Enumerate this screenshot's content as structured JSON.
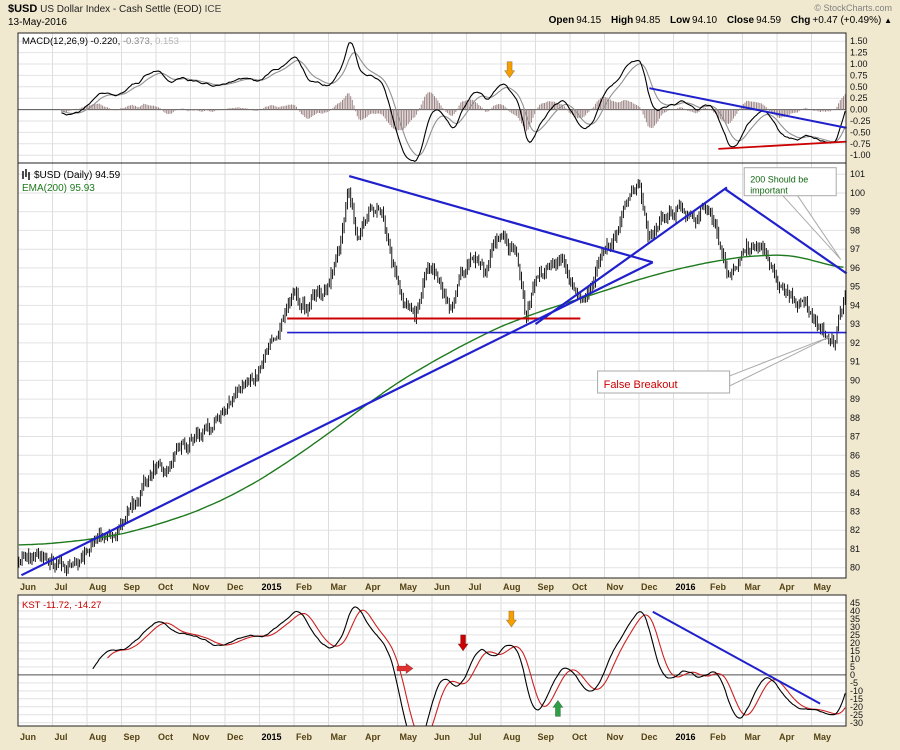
{
  "header": {
    "symbol": "$USD",
    "description": "US Dollar Index - Cash Settle (EOD)",
    "exchange": "ICE",
    "date": "13-May-2016",
    "copyright": "© StockCharts.com",
    "quote": {
      "open_label": "Open",
      "open": "94.15",
      "high_label": "High",
      "high": "94.85",
      "low_label": "Low",
      "low": "94.10",
      "close_label": "Close",
      "close": "94.59",
      "chg_label": "Chg",
      "chg": "+0.47 (+0.49%)",
      "arrow": "▲"
    }
  },
  "colors": {
    "background": "#f0e9d0",
    "panel_bg": "#ffffff",
    "grid": "#dddddd",
    "trendline_blue": "#2020cc",
    "support_red": "#cc0000",
    "ema_green": "#1e7a1e",
    "bars_black": "#000000",
    "macd_signal_gray": "#909090",
    "histogram": "#9d8585",
    "kst_signal_red": "#cc2222",
    "month_label": "#554314",
    "year_label": "#000000"
  },
  "chart_data": {
    "type": "line",
    "title": "$USD US Dollar Index - Cash Settle (EOD) ICE",
    "timeframe": "Daily",
    "months": [
      "Jun",
      "Jul",
      "Aug",
      "Sep",
      "Oct",
      "Nov",
      "Dec",
      "2015",
      "Feb",
      "Mar",
      "Apr",
      "May",
      "Jun",
      "Jul",
      "Aug",
      "Sep",
      "Oct",
      "Nov",
      "Dec",
      "2016",
      "Feb",
      "Mar",
      "Apr",
      "May"
    ],
    "days_per_month": 21,
    "panels": {
      "macd": {
        "label": "MACD(12,26,9)",
        "values": [
          "-0.220",
          "-0.373",
          "0.153"
        ],
        "params": {
          "fast": 12,
          "slow": 26,
          "signal": 9
        },
        "ylim": [
          -1.17,
          1.68
        ],
        "tick_format": "2dp",
        "yticks": [
          1.5,
          1.25,
          1.0,
          0.75,
          0.5,
          0.25,
          0.0,
          -0.25,
          -0.5,
          -0.75,
          -1.0
        ],
        "trendline": {
          "from": [
            18.3,
            0.47
          ],
          "to": [
            24.02,
            -0.4
          ],
          "color": "#2020cc"
        },
        "support_line": {
          "from": [
            20.3,
            -0.86
          ],
          "to": [
            24.02,
            -0.7
          ],
          "color": "#cc0000"
        },
        "arrows": [
          {
            "t": 14.25,
            "v": 0.7,
            "dir": "down",
            "color": "#f59f00"
          }
        ]
      },
      "price": {
        "label": "$USD (Daily)",
        "close": "94.59",
        "ema_label": "EMA(200)",
        "ema_value": "95.93",
        "ylim": [
          79.45,
          101.6
        ],
        "tick_format": "int",
        "yticks": [
          101,
          100,
          99,
          98,
          97,
          96,
          95,
          94,
          93,
          92,
          91,
          90,
          89,
          88,
          87,
          86,
          85,
          84,
          83,
          82,
          81,
          80
        ],
        "close_anchors": [
          [
            0,
            80.4
          ],
          [
            0.6,
            80.7
          ],
          [
            1.2,
            80.1
          ],
          [
            1.7,
            80.3
          ],
          [
            2.1,
            81.2
          ],
          [
            2.6,
            81.7
          ],
          [
            3,
            82.2
          ],
          [
            3.5,
            83.8
          ],
          [
            3.9,
            85.6
          ],
          [
            4.2,
            85.1
          ],
          [
            4.6,
            86.3
          ],
          [
            5,
            86.9
          ],
          [
            5.5,
            87.6
          ],
          [
            6,
            88.6
          ],
          [
            6.5,
            89.7
          ],
          [
            6.9,
            90.2
          ],
          [
            7.3,
            91.9
          ],
          [
            7.7,
            93.6
          ],
          [
            8,
            94.8
          ],
          [
            8.3,
            93.9
          ],
          [
            8.7,
            94.5
          ],
          [
            9,
            95.2
          ],
          [
            9.3,
            97.3
          ],
          [
            9.55,
            100.2
          ],
          [
            9.8,
            97.6
          ],
          [
            10.1,
            99.0
          ],
          [
            10.45,
            99.4
          ],
          [
            10.8,
            96.5
          ],
          [
            11.1,
            94.4
          ],
          [
            11.5,
            93.4
          ],
          [
            11.85,
            96.2
          ],
          [
            12.2,
            95.1
          ],
          [
            12.5,
            93.7
          ],
          [
            12.8,
            95.6
          ],
          [
            13.15,
            96.4
          ],
          [
            13.5,
            95.8
          ],
          [
            13.8,
            97.3
          ],
          [
            14.1,
            97.6
          ],
          [
            14.45,
            96.3
          ],
          [
            14.7,
            93.2
          ],
          [
            15,
            95.5
          ],
          [
            15.4,
            95.9
          ],
          [
            15.75,
            96.3
          ],
          [
            16.05,
            95.2
          ],
          [
            16.3,
            94.1
          ],
          [
            16.6,
            95.0
          ],
          [
            16.9,
            96.9
          ],
          [
            17.3,
            97.8
          ],
          [
            17.6,
            99.5
          ],
          [
            18,
            100.2
          ],
          [
            18.25,
            97.8
          ],
          [
            18.6,
            98.6
          ],
          [
            18.95,
            99.0
          ],
          [
            19.3,
            99.2
          ],
          [
            19.6,
            98.6
          ],
          [
            19.9,
            99.4
          ],
          [
            20.2,
            98.2
          ],
          [
            20.55,
            95.4
          ],
          [
            20.8,
            95.9
          ],
          [
            21.1,
            96.9
          ],
          [
            21.45,
            97.4
          ],
          [
            21.8,
            95.9
          ],
          [
            22.1,
            94.8
          ],
          [
            22.5,
            94.5
          ],
          [
            22.8,
            93.9
          ],
          [
            23.1,
            93.2
          ],
          [
            23.4,
            92.5
          ],
          [
            23.65,
            91.95
          ],
          [
            23.85,
            93.8
          ],
          [
            24,
            94.59
          ]
        ],
        "ema_anchors": [
          [
            0,
            81.2
          ],
          [
            1,
            81.3
          ],
          [
            2,
            81.5
          ],
          [
            3,
            81.8
          ],
          [
            4,
            82.3
          ],
          [
            5,
            82.9
          ],
          [
            6,
            83.7
          ],
          [
            7,
            84.7
          ],
          [
            8,
            85.9
          ],
          [
            9,
            87.2
          ],
          [
            10,
            88.6
          ],
          [
            11,
            89.9
          ],
          [
            12,
            91.0
          ],
          [
            13,
            92.0
          ],
          [
            14,
            92.9
          ],
          [
            15,
            93.6
          ],
          [
            16,
            94.2
          ],
          [
            17,
            94.8
          ],
          [
            18,
            95.4
          ],
          [
            19,
            95.9
          ],
          [
            20,
            96.3
          ],
          [
            21,
            96.6
          ],
          [
            22,
            96.7
          ],
          [
            22.6,
            96.6
          ],
          [
            23.2,
            96.3
          ],
          [
            24,
            95.93
          ]
        ],
        "trendlines": [
          {
            "from": [
              0.1,
              79.6
            ],
            "to": [
              18.4,
              96.3
            ],
            "color": "#2020cc"
          },
          {
            "from": [
              9.6,
              100.9
            ],
            "to": [
              18.4,
              96.3
            ],
            "color": "#2020cc"
          },
          {
            "from": [
              15.0,
              93.0
            ],
            "to": [
              20.55,
              100.3
            ],
            "color": "#2020cc"
          },
          {
            "from": [
              20.5,
              100.2
            ],
            "to": [
              24.02,
              95.7
            ],
            "color": "#2020cc"
          }
        ],
        "hlines": [
          {
            "v": 92.55,
            "t0": 7.8,
            "t1": 24.02,
            "color": "#2020cc",
            "w": 1.6
          },
          {
            "v": 93.3,
            "t0": 7.8,
            "t1": 16.3,
            "color": "#cc0000",
            "w": 2
          }
        ],
        "annotations": [
          {
            "lines": [
              "200 Should be",
              "important"
            ],
            "color": "#116611",
            "size": 9,
            "t": 21.05,
            "v": 101.35,
            "w": 92,
            "h": 28,
            "from": "bottom",
            "tip": [
              23.85,
              96.45
            ]
          },
          {
            "lines": [
              "False Breakout"
            ],
            "color": "#cc0000",
            "size": 11,
            "t": 16.8,
            "v": 90.5,
            "w": 132,
            "h": 22,
            "from": "right",
            "tip": [
              23.5,
              92.3
            ]
          }
        ]
      },
      "kst": {
        "label": "KST",
        "values": [
          "-11.72",
          "-14.27"
        ],
        "ylim": [
          -32,
          50
        ],
        "tick_format": "int",
        "yticks": [
          45,
          40,
          35,
          30,
          25,
          20,
          15,
          10,
          5,
          0,
          -5,
          -10,
          -15,
          -20,
          -25,
          -30
        ],
        "trendline": {
          "from": [
            18.4,
            39.5
          ],
          "to": [
            23.25,
            -18
          ],
          "color": "#2020cc"
        },
        "arrows": [
          {
            "t": 11.45,
            "v": 4,
            "dir": "right",
            "color": "#e03131"
          },
          {
            "t": 12.9,
            "v": 15,
            "dir": "down",
            "color": "#cc0000"
          },
          {
            "t": 14.3,
            "v": 30,
            "dir": "down",
            "color": "#f59f00"
          },
          {
            "t": 15.65,
            "v": -16,
            "dir": "up",
            "color": "#2f9e44"
          }
        ]
      }
    }
  }
}
